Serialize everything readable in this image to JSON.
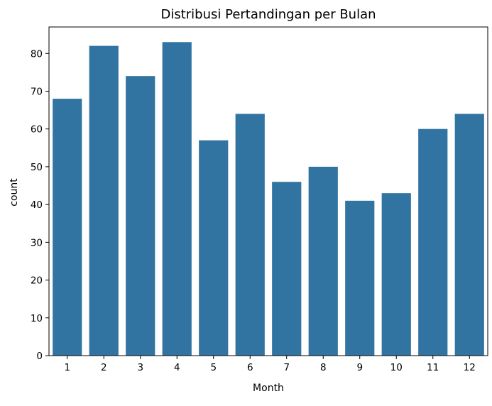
{
  "chart_data": {
    "type": "bar",
    "title": "Distribusi Pertandingan per Bulan",
    "xlabel": "Month",
    "ylabel": "count",
    "categories": [
      "1",
      "2",
      "3",
      "4",
      "5",
      "6",
      "7",
      "8",
      "9",
      "10",
      "11",
      "12"
    ],
    "values": [
      68,
      82,
      74,
      83,
      57,
      64,
      46,
      50,
      41,
      43,
      60,
      64
    ],
    "ylim": [
      0,
      87
    ],
    "yticks": [
      0,
      10,
      20,
      30,
      40,
      50,
      60,
      70,
      80
    ],
    "grid": false,
    "legend": "none",
    "bar_color": "#3274a1"
  }
}
